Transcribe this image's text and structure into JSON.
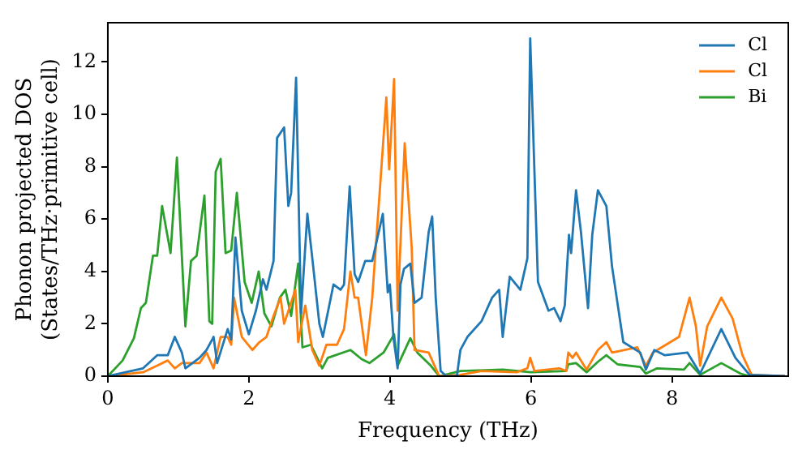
{
  "chart_data": {
    "type": "line",
    "xlabel": "Frequency (THz)",
    "ylabel": "Phonon projected DOS\n(States/THz·primitive cell)",
    "xlim": [
      0,
      9.65
    ],
    "xticks": [
      0,
      2,
      4,
      6,
      8
    ],
    "ylim": [
      0,
      13.5
    ],
    "yticks": [
      0,
      2,
      4,
      6,
      8,
      10,
      12
    ],
    "grid": false,
    "legend": "top right",
    "marker": "none",
    "line_style": "solid",
    "series": [
      {
        "name": "Cl",
        "color": "#1f77b4",
        "x": [
          0,
          0.5,
          0.7,
          0.85,
          0.95,
          1.05,
          1.1,
          1.3,
          1.4,
          1.5,
          1.55,
          1.7,
          1.75,
          1.81,
          1.9,
          2.0,
          2.1,
          2.2,
          2.25,
          2.35,
          2.4,
          2.5,
          2.56,
          2.6,
          2.67,
          2.74,
          2.83,
          2.9,
          3.0,
          3.05,
          3.2,
          3.3,
          3.35,
          3.43,
          3.5,
          3.55,
          3.65,
          3.75,
          3.9,
          3.97,
          4.0,
          4.05,
          4.11,
          4.15,
          4.2,
          4.29,
          4.35,
          4.45,
          4.55,
          4.6,
          4.65,
          4.72,
          4.8,
          4.95,
          5.0,
          5.1,
          5.3,
          5.45,
          5.55,
          5.6,
          5.7,
          5.85,
          5.95,
          5.99,
          6.1,
          6.25,
          6.33,
          6.42,
          6.48,
          6.54,
          6.57,
          6.64,
          6.71,
          6.81,
          6.87,
          6.95,
          7.07,
          7.15,
          7.31,
          7.55,
          7.63,
          7.75,
          7.9,
          8.22,
          8.4,
          8.7,
          8.9,
          9.1,
          9.6
        ],
        "values": [
          0,
          0.3,
          0.8,
          0.8,
          1.5,
          0.9,
          0.3,
          0.7,
          1.0,
          1.5,
          0.5,
          1.8,
          1.4,
          5.3,
          2.5,
          1.6,
          2.5,
          3.7,
          3.3,
          4.4,
          9.1,
          9.5,
          6.5,
          7.0,
          11.4,
          2.4,
          6.2,
          4.5,
          2.0,
          1.5,
          3.5,
          3.3,
          3.5,
          7.25,
          3.9,
          3.6,
          4.4,
          4.4,
          6.2,
          3.2,
          3.5,
          1.5,
          0.3,
          3.5,
          4.1,
          4.3,
          2.8,
          3.0,
          5.5,
          6.1,
          3.0,
          0.2,
          0,
          0,
          1.0,
          1.5,
          2.1,
          3.0,
          3.3,
          1.5,
          3.8,
          3.3,
          4.5,
          12.9,
          3.6,
          2.5,
          2.6,
          2.1,
          2.7,
          5.4,
          4.7,
          7.1,
          5.5,
          2.6,
          5.4,
          7.1,
          6.5,
          4.2,
          1.3,
          0.9,
          0.25,
          1.0,
          0.8,
          0.9,
          0.1,
          1.8,
          0.7,
          0.05,
          0
        ]
      },
      {
        "name": "Cl",
        "color": "#ff7f0e",
        "x": [
          0,
          0.5,
          0.7,
          0.85,
          0.95,
          1.05,
          1.3,
          1.4,
          1.5,
          1.6,
          1.7,
          1.75,
          1.79,
          1.9,
          2.05,
          2.15,
          2.25,
          2.35,
          2.45,
          2.5,
          2.66,
          2.7,
          2.8,
          2.9,
          3.0,
          3.1,
          3.25,
          3.35,
          3.44,
          3.5,
          3.55,
          3.66,
          3.75,
          3.95,
          3.99,
          4.06,
          4.11,
          4.21,
          4.31,
          4.35,
          4.55,
          4.7,
          5.0,
          5.3,
          5.8,
          5.95,
          5.99,
          6.05,
          6.4,
          6.5,
          6.53,
          6.59,
          6.64,
          6.79,
          6.95,
          7.07,
          7.15,
          7.51,
          7.63,
          7.73,
          8.1,
          8.25,
          8.34,
          8.4,
          8.5,
          8.7,
          8.86,
          9.0,
          9.13,
          9.6
        ],
        "values": [
          0,
          0.15,
          0.4,
          0.6,
          0.3,
          0.5,
          0.5,
          0.9,
          0.3,
          1.5,
          1.5,
          1.2,
          3.0,
          1.5,
          1.0,
          1.3,
          1.5,
          2.3,
          3.0,
          2.0,
          3.3,
          1.3,
          2.7,
          1.0,
          0.4,
          1.2,
          1.2,
          1.8,
          4.0,
          3.0,
          3.0,
          0.8,
          3.0,
          10.65,
          7.9,
          11.35,
          2.5,
          8.9,
          4.9,
          1.0,
          0.9,
          0,
          0.05,
          0.2,
          0.15,
          0.3,
          0.7,
          0.2,
          0.3,
          0.2,
          0.9,
          0.7,
          0.9,
          0.25,
          1.0,
          1.3,
          0.9,
          1.1,
          0.4,
          0.9,
          1.5,
          3.0,
          1.9,
          0.4,
          1.9,
          3.0,
          2.2,
          0.8,
          0.05,
          0
        ]
      },
      {
        "name": "Bi",
        "color": "#2ca02c",
        "x": [
          0,
          0.21,
          0.37,
          0.47,
          0.54,
          0.64,
          0.7,
          0.77,
          0.89,
          0.98,
          1.1,
          1.18,
          1.26,
          1.37,
          1.44,
          1.48,
          1.53,
          1.6,
          1.67,
          1.75,
          1.83,
          1.94,
          2.04,
          2.14,
          2.22,
          2.32,
          2.44,
          2.52,
          2.6,
          2.7,
          2.76,
          2.88,
          3.04,
          3.12,
          3.44,
          3.6,
          3.71,
          3.91,
          4.06,
          4.11,
          4.29,
          4.39,
          4.58,
          4.7,
          5.0,
          5.6,
          6.0,
          6.5,
          6.53,
          6.64,
          6.79,
          6.95,
          7.07,
          7.23,
          7.55,
          7.63,
          7.79,
          8.17,
          8.25,
          8.4,
          8.7,
          8.97,
          9.1,
          9.6
        ],
        "values": [
          0,
          0.6,
          1.45,
          2.6,
          2.8,
          4.6,
          4.6,
          6.5,
          4.7,
          8.35,
          1.9,
          4.4,
          4.6,
          6.9,
          2.1,
          2.0,
          7.8,
          8.3,
          4.7,
          4.8,
          7.0,
          3.6,
          2.8,
          4.0,
          2.4,
          1.9,
          3.0,
          3.3,
          2.3,
          4.3,
          1.1,
          1.2,
          0.3,
          0.7,
          1.0,
          0.65,
          0.5,
          0.9,
          1.6,
          0.4,
          1.45,
          0.9,
          0.4,
          0,
          0.2,
          0.25,
          0.15,
          0.2,
          0.45,
          0.5,
          0.15,
          0.55,
          0.8,
          0.45,
          0.35,
          0.1,
          0.3,
          0.25,
          0.5,
          0.05,
          0.5,
          0.1,
          0,
          0
        ]
      }
    ]
  }
}
